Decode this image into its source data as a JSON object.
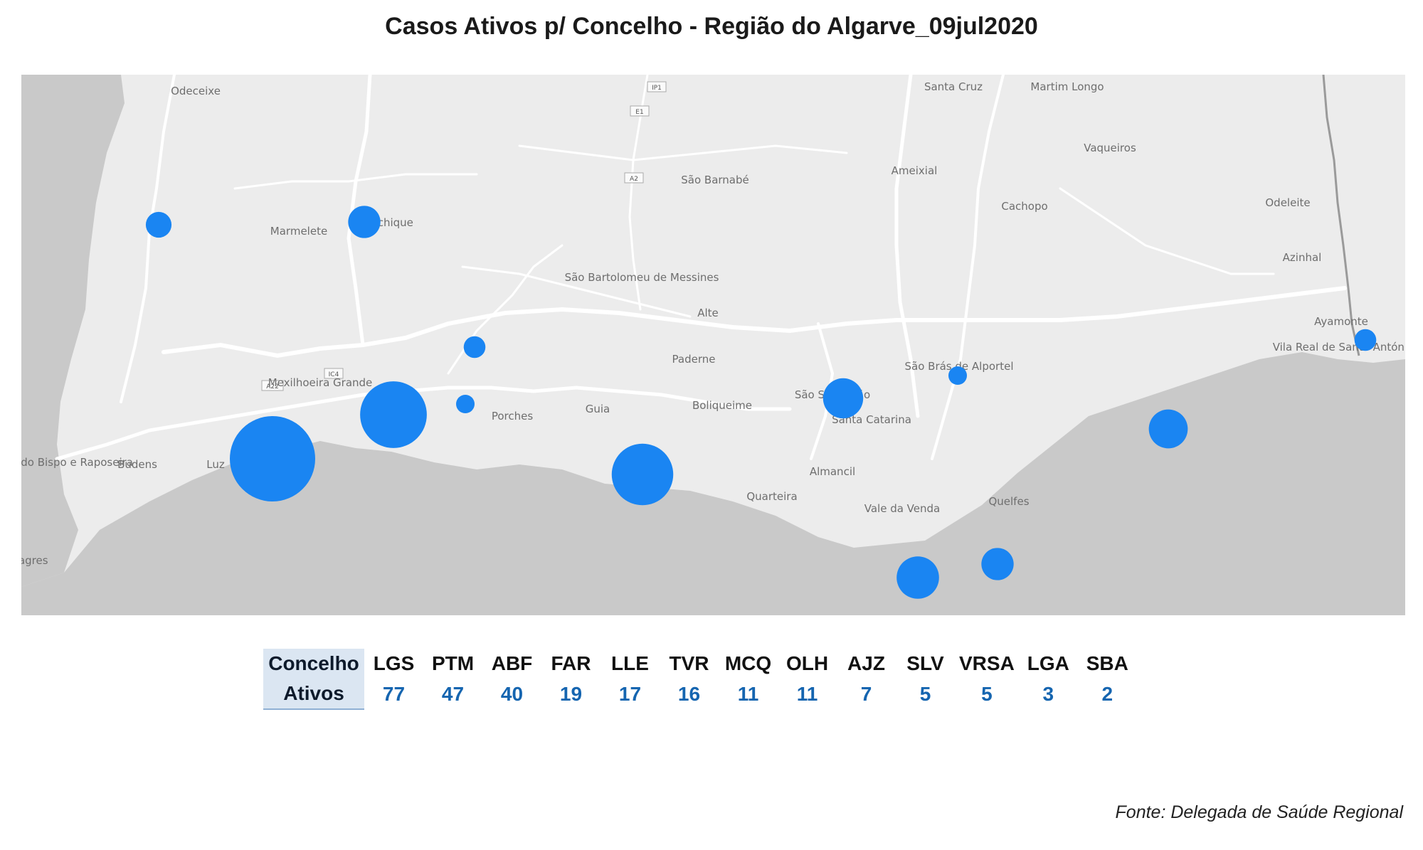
{
  "title": "Casos Ativos p/ Concelho - Região do Algarve_09jul2020",
  "map": {
    "colors": {
      "land": "#ececec",
      "sea": "#c9c9c9",
      "road": "#ffffff",
      "bubble": "#1a85f2",
      "label": "#6e6e6e"
    },
    "place_labels": [
      "Odeceixe",
      "Marmelete",
      "Monchique",
      "Santa Cruz",
      "Martim Longo",
      "Vaqueiros",
      "Ameixial",
      "São Barnabé",
      "Cachopo",
      "Odeleite",
      "Azinhal",
      "São Bartolomeu de Messines",
      "Alte",
      "Paderne",
      "Mexilhoeira Grande",
      "Porches",
      "Guia",
      "Boliqueime",
      "São Brás de Alportel",
      "São Sebastião",
      "Santa Catarina",
      "Almancil",
      "Quarteira",
      "Vale da Venda",
      "Quelfes",
      "Vila do Bispo e Raposeira",
      "Budens",
      "Luz",
      "Sagres",
      "Ayamonte",
      "Vila Real de Santo António"
    ],
    "road_shields": [
      "IP1",
      "E1",
      "A2",
      "A22",
      "IC4"
    ]
  },
  "table": {
    "row_header_concelho": "Concelho",
    "row_header_ativos": "Ativos",
    "concelhos": [
      "LGS",
      "PTM",
      "ABF",
      "FAR",
      "LLE",
      "TVR",
      "MCQ",
      "OLH",
      "AJZ",
      "SLV",
      "VRSA",
      "LGA",
      "SBA"
    ],
    "ativos": [
      77,
      47,
      40,
      19,
      17,
      16,
      11,
      11,
      7,
      5,
      5,
      3,
      2
    ]
  },
  "source": "Fonte: Delegada de Saúde Regional"
}
